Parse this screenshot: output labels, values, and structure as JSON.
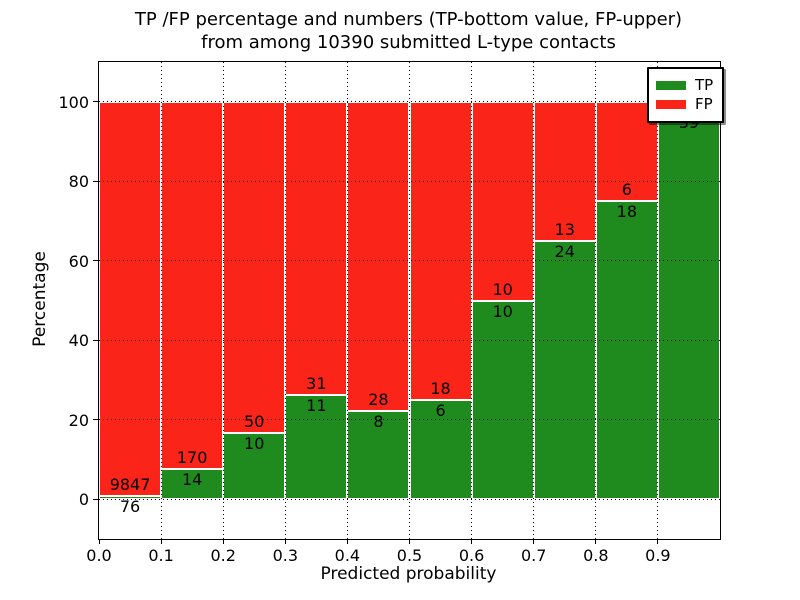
{
  "title": {
    "line1": "TP /FP percentage and numbers (TP-bottom value, FP-upper)",
    "line2": "from among 10390 submitted L-type contacts"
  },
  "axes": {
    "xlabel": "Predicted probability",
    "ylabel": "Percentage",
    "xticks": [
      "0.0",
      "0.1",
      "0.2",
      "0.3",
      "0.4",
      "0.5",
      "0.6",
      "0.7",
      "0.8",
      "0.9"
    ],
    "xtick_values": [
      0,
      0.1,
      0.2,
      0.3,
      0.4,
      0.5,
      0.6,
      0.7,
      0.8,
      0.9
    ],
    "yticks": [
      "0",
      "20",
      "40",
      "60",
      "80",
      "100"
    ],
    "ytick_values": [
      0,
      20,
      40,
      60,
      80,
      100
    ],
    "xlim": [
      0,
      1
    ],
    "ylim": [
      -10,
      110
    ],
    "grid": "dotted-black"
  },
  "legend": {
    "position": "upper-right",
    "items": [
      {
        "label": "TP",
        "color": "#1f8b1f"
      },
      {
        "label": "FP",
        "color": "#fa2418"
      }
    ]
  },
  "colors": {
    "tp_green": "#1f8b1f",
    "fp_red": "#fa2418",
    "bar_edge": "#ffffff",
    "grid": "#000000",
    "axis": "#000000"
  },
  "chart_data": {
    "type": "bar",
    "stacked": true,
    "normalized": "each bar scaled to 100%",
    "total_contacts": 10390,
    "categories": [
      "0.0-0.1",
      "0.1-0.2",
      "0.2-0.3",
      "0.3-0.4",
      "0.4-0.5",
      "0.5-0.6",
      "0.6-0.7",
      "0.7-0.8",
      "0.8-0.9",
      "0.9-1.0"
    ],
    "series": [
      {
        "name": "TP",
        "values": [
          76,
          14,
          10,
          11,
          8,
          6,
          10,
          24,
          18,
          39
        ]
      },
      {
        "name": "FP",
        "values": [
          9847,
          170,
          50,
          31,
          28,
          18,
          10,
          13,
          6,
          1
        ]
      }
    ],
    "tp_percent": [
      0.77,
      7.61,
      16.67,
      26.19,
      22.22,
      25.0,
      50.0,
      64.86,
      75.0,
      97.5
    ],
    "bar_labels": {
      "tp": [
        "76",
        "14",
        "10",
        "11",
        "8",
        "6",
        "10",
        "24",
        "18",
        "39"
      ],
      "fp": [
        "9847",
        "170",
        "50",
        "31",
        "28",
        "18",
        "10",
        "13",
        "6",
        ""
      ]
    },
    "title": "TP /FP percentage and numbers (TP-bottom value, FP-upper) from among 10390 submitted L-type contacts",
    "xlabel": "Predicted probability",
    "ylabel": "Percentage",
    "ylim": [
      -10,
      110
    ]
  }
}
